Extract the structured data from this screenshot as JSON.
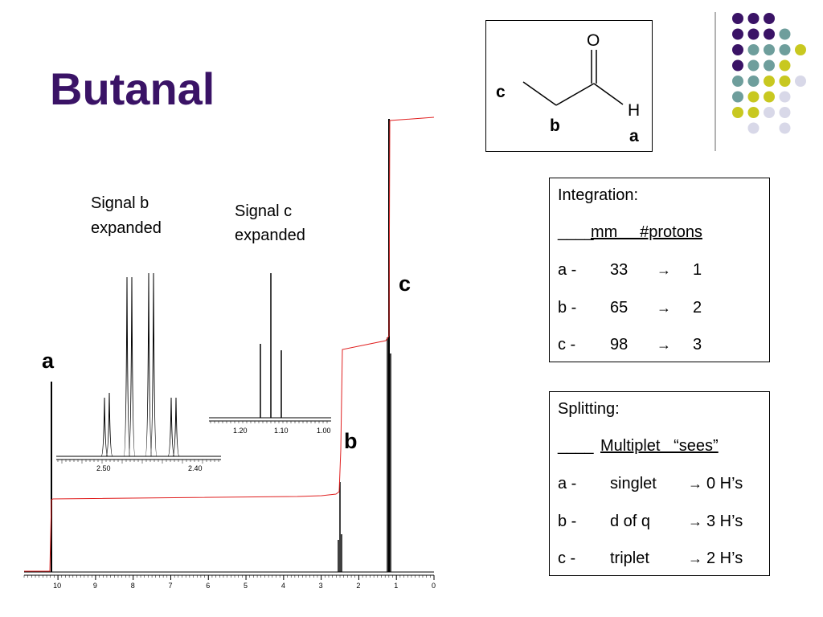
{
  "title": "Butanal",
  "chart_data": [
    {
      "type": "line",
      "xlabel": "",
      "ylabel": "",
      "x_ticks": [
        "10",
        "9",
        "8",
        "7",
        "6",
        "5",
        "4",
        "3",
        "2",
        "1",
        "0"
      ],
      "xlim": [
        10.9,
        0
      ],
      "peaks": [
        {
          "label": "a",
          "ppm": 10.2
        },
        {
          "label": "b",
          "ppm": 2.45
        },
        {
          "label": "c",
          "ppm": 1.12
        }
      ],
      "integration_steps_mm": {
        "a": 33,
        "b": 65,
        "c": 98
      },
      "integral_color": "#e02020",
      "spectrum_color": "#000000"
    },
    {
      "type": "line",
      "name": "Signal b expanded",
      "x_ticks": [
        "2.50",
        "2.40"
      ],
      "multiplicity": "d of q"
    },
    {
      "type": "line",
      "name": "Signal c expanded",
      "x_ticks": [
        "1.20",
        "1.10",
        "1.00"
      ],
      "multiplicity": "triplet"
    }
  ],
  "expansions": {
    "b_line1": "Signal b",
    "b_line2": "expanded",
    "c_line1": "Signal c",
    "c_line2": "expanded"
  },
  "molecule": {
    "O": "O",
    "H": "H",
    "label_c": "c",
    "label_b": "b",
    "label_a": "a"
  },
  "integration": {
    "heading": "Integration:",
    "col_header_prefix": "____",
    "col_header": "mm     #protons",
    "rows": [
      {
        "label": "a -",
        "mm": "33",
        "protons": "1"
      },
      {
        "label": "b -",
        "mm": "65",
        "protons": "2"
      },
      {
        "label": "c -",
        "mm": "98",
        "protons": "3"
      }
    ]
  },
  "splitting": {
    "heading": "Splitting:",
    "col_header_prefix": "____",
    "col_header": "Multiplet   “sees”",
    "rows": [
      {
        "label": "a -",
        "multiplet": "singlet",
        "sees": "0 H’s"
      },
      {
        "label": "b -",
        "multiplet": "d of q",
        "sees": "3 H’s"
      },
      {
        "label": "c -",
        "multiplet": "triplet",
        "sees": "2 H’s"
      }
    ]
  },
  "arrow_glyph": "→",
  "decor_colors": [
    "#3a1366",
    "#6e9e9c",
    "#c8c820",
    "#d8d8e8"
  ]
}
